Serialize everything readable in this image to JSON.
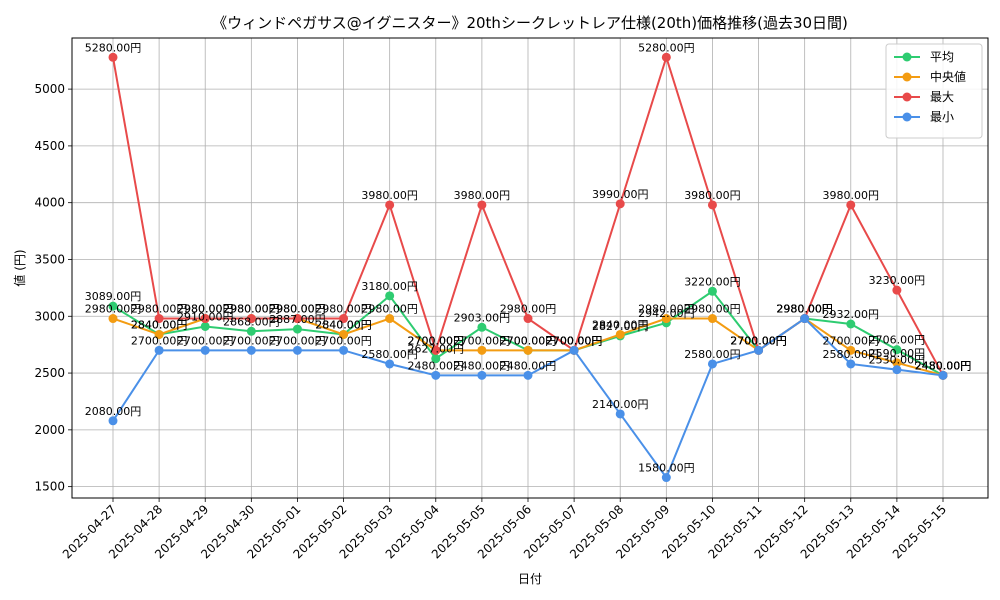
{
  "chart_data": {
    "type": "line",
    "title": "《ウィンドペガサス@イグニスター》20thシークレットレア仕様(20th)価格推移(過去30日間)",
    "xlabel": "日付",
    "ylabel": "値 (円)",
    "ylim": [
      1400,
      5450
    ],
    "yticks": [
      1500,
      2000,
      2500,
      3000,
      3500,
      4000,
      4500,
      5000
    ],
    "grid": true,
    "legend_position": "top-right",
    "label_suffix": "円",
    "categories": [
      "2025-04-27",
      "2025-04-28",
      "2025-04-29",
      "2025-04-30",
      "2025-05-01",
      "2025-05-02",
      "2025-05-03",
      "2025-05-04",
      "2025-05-05",
      "2025-05-06",
      "2025-05-07",
      "2025-05-08",
      "2025-05-09",
      "2025-05-10",
      "2025-05-11",
      "2025-05-12",
      "2025-05-13",
      "2025-05-14",
      "2025-05-15"
    ],
    "series": [
      {
        "name": "平均",
        "color": "#2ecc71",
        "values": [
          3089,
          2840,
          2910,
          2868,
          2887,
          2840,
          3180,
          2627,
          2903,
          2700,
          2700,
          2827,
          2942,
          3220,
          2700,
          2980,
          2932,
          2706,
          2480
        ]
      },
      {
        "name": "中央値",
        "color": "#f39c12",
        "values": [
          2980,
          2840,
          2980,
          2980,
          2980,
          2840,
          2980,
          2700,
          2700,
          2700,
          2700,
          2840,
          2980,
          2980,
          2700,
          2980,
          2700,
          2590,
          2480
        ]
      },
      {
        "name": "最大",
        "color": "#e84a4a",
        "values": [
          5280,
          2980,
          2980,
          2980,
          2980,
          2980,
          3980,
          2700,
          3980,
          2980,
          2700,
          3990,
          5280,
          3980,
          2700,
          2980,
          3980,
          3230,
          2480
        ]
      },
      {
        "name": "最小",
        "color": "#4a90e8",
        "values": [
          2080,
          2700,
          2700,
          2700,
          2700,
          2700,
          2580,
          2480,
          2480,
          2480,
          2700,
          2140,
          1580,
          2580,
          2700,
          2980,
          2580,
          2530,
          2480
        ]
      }
    ]
  }
}
